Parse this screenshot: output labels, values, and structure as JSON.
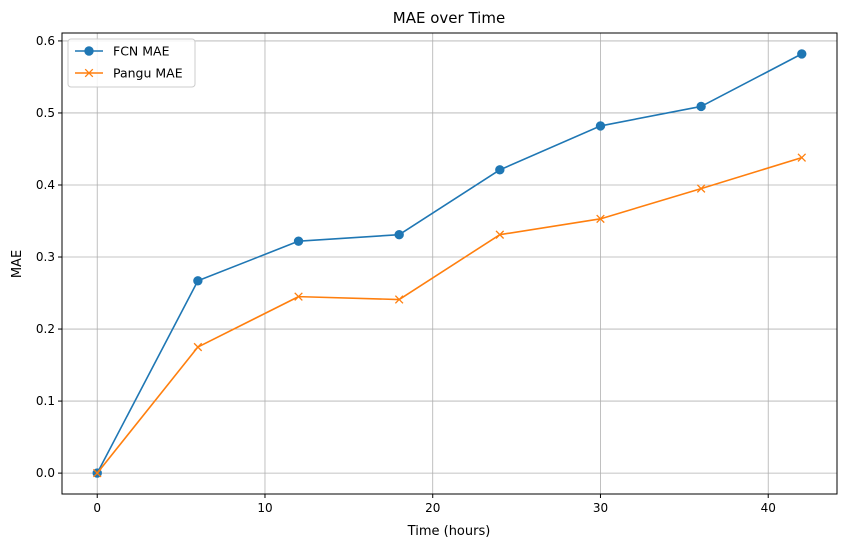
{
  "chart_data": {
    "type": "line",
    "title": "MAE over Time",
    "xlabel": "Time (hours)",
    "ylabel": "MAE",
    "xlim": [
      -2.1,
      44.1
    ],
    "ylim": [
      -0.029,
      0.611
    ],
    "xticks": [
      0,
      10,
      20,
      30,
      40
    ],
    "yticks": [
      0.0,
      0.1,
      0.2,
      0.3,
      0.4,
      0.5,
      0.6
    ],
    "xtick_labels": [
      "0",
      "10",
      "20",
      "30",
      "40"
    ],
    "ytick_labels": [
      "0.0",
      "0.1",
      "0.2",
      "0.3",
      "0.4",
      "0.5",
      "0.6"
    ],
    "grid": true,
    "legend_position": "top-left",
    "x": [
      0,
      6,
      12,
      18,
      24,
      30,
      36,
      42
    ],
    "series": [
      {
        "name": "FCN MAE",
        "color": "#1f77b4",
        "marker": "circle",
        "values": [
          0.0,
          0.267,
          0.322,
          0.331,
          0.421,
          0.482,
          0.509,
          0.582
        ]
      },
      {
        "name": "Pangu MAE",
        "color": "#ff7f0e",
        "marker": "x",
        "values": [
          0.0,
          0.175,
          0.245,
          0.241,
          0.331,
          0.353,
          0.395,
          0.438
        ]
      }
    ]
  }
}
